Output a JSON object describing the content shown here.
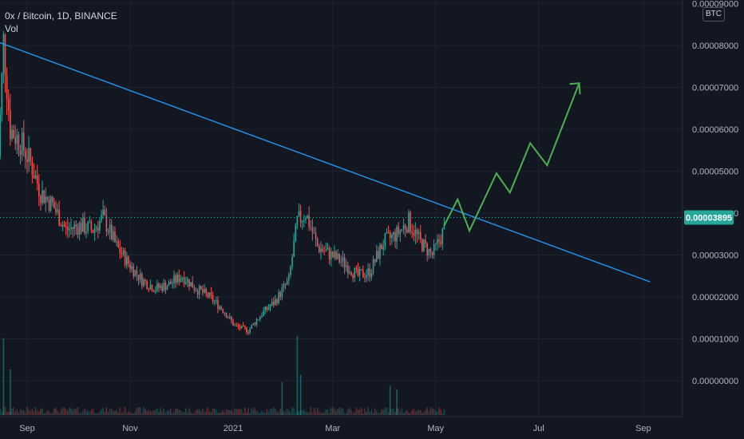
{
  "header": {
    "symbol_line": "0x / Bitcoin, 1D, BINANCE",
    "volume_label": "Vol",
    "currency_button": "BTC"
  },
  "colors": {
    "background": "#131722",
    "grid": "#1f2330",
    "up": "#26a69a",
    "down": "#ef5350",
    "trendline": "#2196f3",
    "projection": "#4caf50",
    "price_tag": "#26a69a"
  },
  "chart_data": {
    "type": "candlestick",
    "title": "0x / Bitcoin, 1D, BINANCE",
    "y_ticks": [
      "0.00000000",
      "0.00001000",
      "0.00002000",
      "0.00003000",
      "0.00004000",
      "0.00005000",
      "0.00006000",
      "0.00007000",
      "0.00008000",
      "0.00009000"
    ],
    "y_range": [
      0.0,
      9e-05
    ],
    "x_ticks": [
      "Sep",
      "Nov",
      "2021",
      "Mar",
      "May",
      "Jul",
      "Sep"
    ],
    "x_tick_dates": [
      "2020-09-01",
      "2020-11-01",
      "2021-01-01",
      "2021-03-01",
      "2021-05-01",
      "2021-07-01",
      "2021-09-01"
    ],
    "current_price": "0.00003895",
    "current_price_value": 3.895e-05,
    "price_path": [
      [
        "2020-08-14",
        4.5e-05
      ],
      [
        "2020-08-18",
        8.1e-05
      ],
      [
        "2020-08-22",
        6e-05
      ],
      [
        "2020-08-28",
        5.7e-05
      ],
      [
        "2020-09-03",
        5.2e-05
      ],
      [
        "2020-09-09",
        4.5e-05
      ],
      [
        "2020-09-16",
        4.2e-05
      ],
      [
        "2020-09-24",
        3.6e-05
      ],
      [
        "2020-10-02",
        3.7e-05
      ],
      [
        "2020-10-10",
        3.6e-05
      ],
      [
        "2020-10-16",
        3.9e-05
      ],
      [
        "2020-10-24",
        3.2e-05
      ],
      [
        "2020-10-31",
        2.8e-05
      ],
      [
        "2020-11-08",
        2.4e-05
      ],
      [
        "2020-11-16",
        2.2e-05
      ],
      [
        "2020-11-24",
        2.3e-05
      ],
      [
        "2020-12-02",
        2.5e-05
      ],
      [
        "2020-12-10",
        2.2e-05
      ],
      [
        "2020-12-18",
        2e-05
      ],
      [
        "2020-12-26",
        1.7e-05
      ],
      [
        "2021-01-02",
        1.3e-05
      ],
      [
        "2021-01-10",
        1.2e-05
      ],
      [
        "2021-01-18",
        1.6e-05
      ],
      [
        "2021-01-26",
        1.9e-05
      ],
      [
        "2021-02-03",
        2.4e-05
      ],
      [
        "2021-02-08",
        3.8e-05
      ],
      [
        "2021-02-13",
        4e-05
      ],
      [
        "2021-02-20",
        3.2e-05
      ],
      [
        "2021-02-28",
        3e-05
      ],
      [
        "2021-03-08",
        2.8e-05
      ],
      [
        "2021-03-16",
        2.5e-05
      ],
      [
        "2021-03-23",
        2.6e-05
      ],
      [
        "2021-03-31",
        3.3e-05
      ],
      [
        "2021-04-08",
        3.5e-05
      ],
      [
        "2021-04-15",
        3.8e-05
      ],
      [
        "2021-04-22",
        3.3e-05
      ],
      [
        "2021-04-29",
        3e-05
      ],
      [
        "2021-05-06",
        3.6e-05
      ]
    ],
    "trendline": [
      [
        "2020-08-15",
        8.08e-05
      ],
      [
        "2021-09-05",
        2.36e-05
      ]
    ],
    "projection": [
      [
        "2021-05-06",
        3.7e-05
      ],
      [
        "2021-05-14",
        4.33e-05
      ],
      [
        "2021-05-21",
        3.58e-05
      ],
      [
        "2021-06-06",
        4.95e-05
      ],
      [
        "2021-06-14",
        4.49e-05
      ],
      [
        "2021-06-26",
        5.67e-05
      ],
      [
        "2021-07-06",
        5.14e-05
      ],
      [
        "2021-07-25",
        7.1e-05
      ],
      [
        "2021-07-30",
        6.87e-05
      ]
    ],
    "volume_spikes": [
      [
        "2020-08-18",
        0.42
      ],
      [
        "2020-08-22",
        0.25
      ],
      [
        "2021-02-08",
        0.43
      ],
      [
        "2021-02-10",
        0.22
      ],
      [
        "2021-01-30",
        0.18
      ],
      [
        "2021-04-04",
        0.16
      ],
      [
        "2021-04-08",
        0.14
      ]
    ],
    "grid": true
  }
}
